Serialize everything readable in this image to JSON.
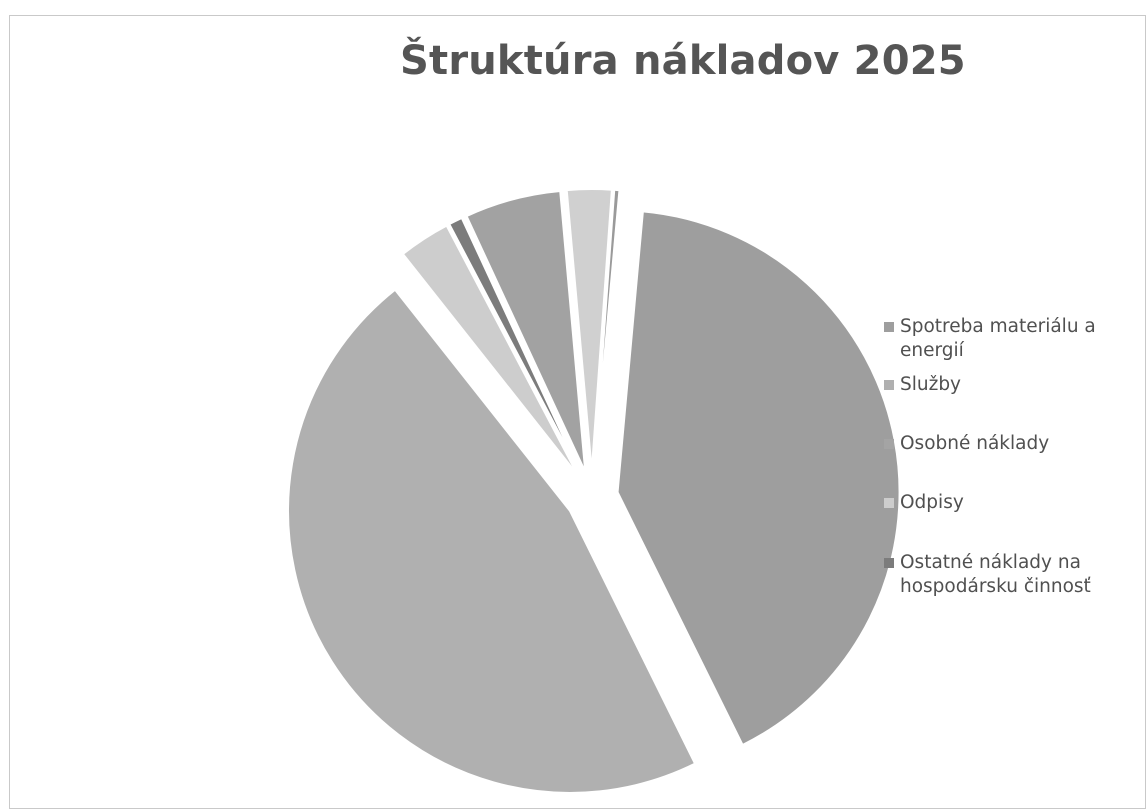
{
  "chart_data": {
    "type": "pie",
    "title": "Štruktúra nákladov 2025",
    "legend_position": "right",
    "slices": [
      {
        "label": "Spotreba materiálu a energií",
        "value": 42.0,
        "color": "#9e9e9e"
      },
      {
        "label": "Služby",
        "value": 47.5,
        "color": "#b0b0b0"
      },
      {
        "label": "Osobné náklady",
        "value": 0.0,
        "color": "#a4a4a4"
      },
      {
        "label": "Odpisy",
        "value": 3.0,
        "color": "#cdcdcd"
      },
      {
        "label": "Ostatné náklady na hospodársku činnosť",
        "value": 0.8,
        "color": "#7c7c7c"
      },
      {
        "label": "",
        "value": 5.6,
        "color": "#a2a2a2"
      },
      {
        "label": "",
        "value": 2.6,
        "color": "#d0d0d0"
      },
      {
        "label": "",
        "value": 0.3,
        "color": "#9a9a9a"
      }
    ],
    "legend": [
      {
        "label": "Spotreba materiálu a energií",
        "color": "#9e9e9e"
      },
      {
        "label": "Služby",
        "color": "#b0b0b0"
      },
      {
        "label": "Osobné náklady",
        "color": "#a4a4a4"
      },
      {
        "label": "Odpisy",
        "color": "#cdcdcd"
      },
      {
        "label": "Ostatné náklady na hospodársku činnosť",
        "color": "#7c7c7c"
      }
    ]
  }
}
